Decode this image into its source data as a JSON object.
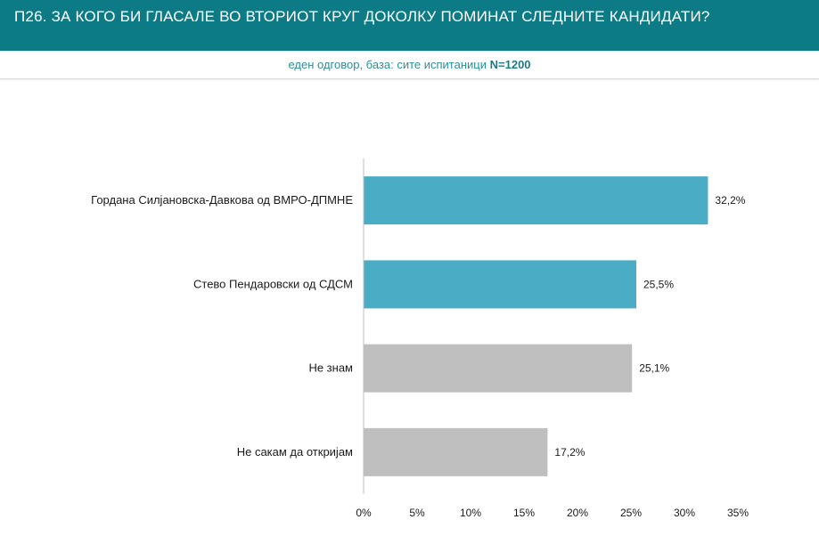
{
  "header": {
    "title": "П26. ЗА КОГО БИ ГЛАСАЛЕ ВО ВТОРИОТ КРУГ ДОКОЛКУ ПОМИНАТ СЛЕДНИТЕ КАНДИДАТИ?"
  },
  "subheader": {
    "text": "еден одговор, база: сите испитаници",
    "base": "N=1200"
  },
  "colors": {
    "header_bg": "#0d7b86",
    "candidate_bar": "#4bacc6",
    "other_bar": "#bfbfbf"
  },
  "chart_data": {
    "type": "bar",
    "orientation": "horizontal",
    "title": "",
    "xlabel": "",
    "ylabel": "",
    "xlim": [
      0,
      35
    ],
    "x_ticks": [
      "0%",
      "5%",
      "10%",
      "15%",
      "20%",
      "25%",
      "30%",
      "35%"
    ],
    "grid": false,
    "categories": [
      "Гордана Силјановска-Давкова од ВМРО-ДПМНЕ",
      "Стево Пендаровски од СДСМ",
      "Не знам",
      "Не сакам да откријам"
    ],
    "values": [
      32.2,
      25.5,
      25.1,
      17.2
    ],
    "value_labels": [
      "32,2%",
      "25,5%",
      "25,1%",
      "17,2%"
    ],
    "bar_colors": [
      "#4bacc6",
      "#4bacc6",
      "#bfbfbf",
      "#bfbfbf"
    ]
  }
}
